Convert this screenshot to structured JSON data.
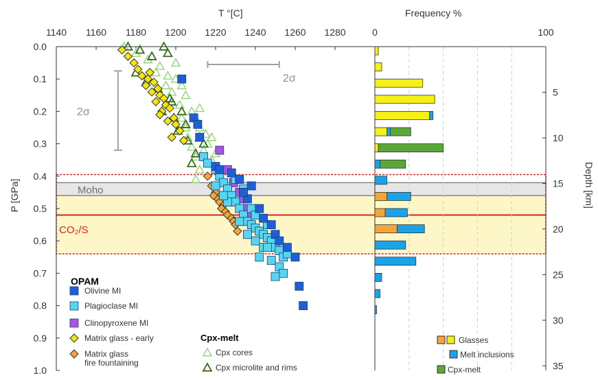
{
  "colors": {
    "olivine": "#1f5fd6",
    "plagioclase": "#54d6ee",
    "clinopyroxene": "#a855e0",
    "matrix_early": "#f2e60a",
    "matrix_fire": "#f2a63a",
    "cpx_core": "#8fd06a",
    "cpx_rim": "#356b1f",
    "moho_band": "#e6e6e6",
    "co2_band": "#fdf6c6",
    "co2_line": "#e02020",
    "two_sigma": "#a0a0a0",
    "freq_glass": "#f5ef1a",
    "freq_glass_fire": "#f2a63a",
    "freq_melt": "#1aa3e8",
    "freq_cpx": "#5aa83a"
  },
  "chart_data": [
    {
      "type": "scatter",
      "xlabel": "T  °[C]",
      "ylabel": "P [GPa]",
      "xlim": [
        1140,
        1300
      ],
      "ylim": [
        0.0,
        1.0
      ],
      "xticks": [
        "1140",
        "1160",
        "1180",
        "1200",
        "1220",
        "1240",
        "1260",
        "1280"
      ],
      "yticks": [
        "0.0",
        "0.1",
        "0.2",
        "0.3",
        "0.4",
        "0.5",
        "0.6",
        "0.7",
        "0.8",
        "0.9",
        "1.0"
      ],
      "legend_placement": "bottom-left",
      "legend_title_opam": "OPAM",
      "legend_title_cpx": "Cpx-melt",
      "legend": [
        {
          "key": "olivine",
          "label": "Olivine MI"
        },
        {
          "key": "plagioclase",
          "label": "Plagioclase MI"
        },
        {
          "key": "clinopyroxene",
          "label": "Clinopyroxene MI"
        },
        {
          "key": "matrix_early",
          "label": "Matrix glass - early"
        },
        {
          "key": "matrix_fire",
          "label": "Matrix glass\nfire fountaining"
        },
        {
          "key": "cpx_core",
          "label": "Cpx cores"
        },
        {
          "key": "cpx_rim",
          "label": "Cpx microlite and rims"
        }
      ],
      "annotations": {
        "moho": "Moho",
        "co2s": "CO₂/S",
        "two_sigma_t": "2σ",
        "two_sigma_p": "2σ"
      },
      "bands": {
        "moho": [
          0.42,
          0.46
        ],
        "co2s": [
          0.46,
          0.64
        ],
        "co2s_outline": [
          0.395,
          0.64
        ],
        "co2s_line": 0.52
      },
      "error_bars": {
        "temperature": {
          "p": 0.055,
          "x_range": [
            1216,
            1252
          ]
        },
        "pressure": {
          "t": 1171,
          "p_range": [
            0.075,
            0.32
          ]
        }
      },
      "series": [
        {
          "key": "cpx_core",
          "name": "Cpx cores",
          "marker": "triangle-open",
          "points": [
            [
              1174,
              0.0
            ],
            [
              1180,
              0.02
            ],
            [
              1186,
              0.04
            ],
            [
              1192,
              0.06
            ],
            [
              1196,
              0.09
            ],
            [
              1200,
              0.1
            ],
            [
              1203,
              0.12
            ],
            [
              1205,
              0.15
            ],
            [
              1202,
              0.18
            ],
            [
              1208,
              0.2
            ],
            [
              1210,
              0.22
            ],
            [
              1212,
              0.25
            ],
            [
              1215,
              0.27
            ],
            [
              1216,
              0.3
            ],
            [
              1214,
              0.32
            ],
            [
              1218,
              0.35
            ],
            [
              1212,
              0.38
            ],
            [
              1210,
              0.41
            ],
            [
              1220,
              0.33
            ],
            [
              1205,
              0.25
            ],
            [
              1198,
              0.14
            ],
            [
              1190,
              0.08
            ],
            [
              1200,
              0.05
            ],
            [
              1206,
              0.28
            ],
            [
              1210,
              0.34
            ],
            [
              1218,
              0.28
            ],
            [
              1212,
              0.19
            ],
            [
              1195,
              0.12
            ],
            [
              1203,
              0.22
            ],
            [
              1208,
              0.31
            ]
          ]
        },
        {
          "key": "cpx_rim",
          "name": "Cpx microlite and rims",
          "marker": "triangle-open-dark",
          "points": [
            [
              1176,
              0.0
            ],
            [
              1182,
              0.01
            ],
            [
              1188,
              0.03
            ],
            [
              1194,
              0.0
            ],
            [
              1180,
              0.08
            ],
            [
              1185,
              0.11
            ],
            [
              1191,
              0.13
            ],
            [
              1197,
              0.16
            ],
            [
              1193,
              0.2
            ],
            [
              1199,
              0.22
            ],
            [
              1201,
              0.26
            ],
            [
              1206,
              0.29
            ],
            [
              1210,
              0.33
            ],
            [
              1214,
              0.3
            ],
            [
              1208,
              0.36
            ],
            [
              1198,
              0.17
            ],
            [
              1203,
              0.2
            ],
            [
              1205,
              0.24
            ],
            [
              1212,
              0.28
            ],
            [
              1196,
              0.02
            ]
          ]
        },
        {
          "key": "matrix_early",
          "name": "Matrix glass - early",
          "marker": "diamond",
          "points": [
            [
              1173,
              0.01
            ],
            [
              1176,
              0.03
            ],
            [
              1179,
              0.05
            ],
            [
              1181,
              0.07
            ],
            [
              1183,
              0.09
            ],
            [
              1186,
              0.1
            ],
            [
              1189,
              0.11
            ],
            [
              1191,
              0.13
            ],
            [
              1188,
              0.14
            ],
            [
              1192,
              0.15
            ],
            [
              1194,
              0.16
            ],
            [
              1190,
              0.17
            ],
            [
              1195,
              0.18
            ],
            [
              1197,
              0.19
            ],
            [
              1193,
              0.2
            ],
            [
              1199,
              0.22
            ],
            [
              1196,
              0.23
            ],
            [
              1200,
              0.24
            ],
            [
              1202,
              0.26
            ],
            [
              1198,
              0.28
            ],
            [
              1204,
              0.29
            ],
            [
              1187,
              0.08
            ],
            [
              1185,
              0.12
            ],
            [
              1192,
              0.21
            ]
          ]
        },
        {
          "key": "matrix_fire",
          "name": "Matrix glass fire fountaining",
          "marker": "diamond",
          "points": [
            [
              1216,
              0.4
            ],
            [
              1218,
              0.43
            ],
            [
              1220,
              0.45
            ],
            [
              1221,
              0.47
            ],
            [
              1222,
              0.48
            ],
            [
              1224,
              0.49
            ],
            [
              1223,
              0.5
            ],
            [
              1225,
              0.51
            ],
            [
              1226,
              0.52
            ],
            [
              1228,
              0.53
            ],
            [
              1229,
              0.54
            ],
            [
              1230,
              0.55
            ],
            [
              1231,
              0.57
            ],
            [
              1219,
              0.46
            ]
          ]
        },
        {
          "key": "clinopyroxene",
          "name": "Clinopyroxene MI",
          "marker": "square",
          "points": [
            [
              1222,
              0.32
            ],
            [
              1226,
              0.38
            ],
            [
              1229,
              0.42
            ],
            [
              1232,
              0.45
            ],
            [
              1234,
              0.47
            ],
            [
              1236,
              0.5
            ],
            [
              1238,
              0.52
            ],
            [
              1230,
              0.48
            ]
          ]
        },
        {
          "key": "plagioclase",
          "name": "Plagioclase MI",
          "marker": "square",
          "points": [
            [
              1214,
              0.34
            ],
            [
              1216,
              0.36
            ],
            [
              1220,
              0.38
            ],
            [
              1222,
              0.4
            ],
            [
              1224,
              0.42
            ],
            [
              1226,
              0.44
            ],
            [
              1228,
              0.46
            ],
            [
              1230,
              0.48
            ],
            [
              1232,
              0.5
            ],
            [
              1234,
              0.52
            ],
            [
              1236,
              0.54
            ],
            [
              1238,
              0.55
            ],
            [
              1240,
              0.56
            ],
            [
              1242,
              0.57
            ],
            [
              1244,
              0.58
            ],
            [
              1246,
              0.59
            ],
            [
              1248,
              0.6
            ],
            [
              1250,
              0.62
            ],
            [
              1252,
              0.63
            ],
            [
              1254,
              0.65
            ],
            [
              1256,
              0.64
            ],
            [
              1244,
              0.62
            ],
            [
              1240,
              0.6
            ],
            [
              1236,
              0.58
            ],
            [
              1248,
              0.66
            ],
            [
              1252,
              0.68
            ],
            [
              1254,
              0.7
            ],
            [
              1250,
              0.71
            ],
            [
              1242,
              0.65
            ],
            [
              1246,
              0.55
            ],
            [
              1238,
              0.5
            ],
            [
              1226,
              0.48
            ],
            [
              1232,
              0.54
            ],
            [
              1240,
              0.52
            ],
            [
              1234,
              0.44
            ],
            [
              1230,
              0.41
            ],
            [
              1220,
              0.43
            ],
            [
              1224,
              0.46
            ],
            [
              1246,
              0.62
            ]
          ]
        },
        {
          "key": "olivine",
          "name": "Olivine MI",
          "marker": "square",
          "points": [
            [
              1203,
              0.1
            ],
            [
              1209,
              0.22
            ],
            [
              1211,
              0.24
            ],
            [
              1212,
              0.28
            ],
            [
              1220,
              0.37
            ],
            [
              1222,
              0.38
            ],
            [
              1228,
              0.39
            ],
            [
              1232,
              0.41
            ],
            [
              1238,
              0.43
            ],
            [
              1236,
              0.47
            ],
            [
              1242,
              0.5
            ],
            [
              1244,
              0.53
            ],
            [
              1248,
              0.55
            ],
            [
              1250,
              0.58
            ],
            [
              1252,
              0.6
            ],
            [
              1256,
              0.62
            ],
            [
              1260,
              0.65
            ],
            [
              1262,
              0.74
            ],
            [
              1264,
              0.8
            ],
            [
              1234,
              0.45
            ]
          ]
        }
      ]
    },
    {
      "type": "bar",
      "xlabel": "Frequency %",
      "ylabel": "Depth [km]",
      "xlim": [
        0,
        100
      ],
      "xticks": [
        "0",
        "100"
      ],
      "depth_ticks": [
        "5",
        "10",
        "15",
        "20",
        "25",
        "30",
        "35"
      ],
      "legend_placement": "bottom-right",
      "legend": [
        {
          "key": "glasses",
          "label": "Glasses"
        },
        {
          "key": "melt",
          "label": "Melt inclusions"
        },
        {
          "key": "cpx",
          "label": "Cpx-melt"
        }
      ],
      "bins_p": [
        0.0,
        0.025,
        0.05,
        0.075,
        0.1,
        0.125,
        0.15,
        0.175,
        0.2,
        0.225,
        0.25,
        0.275,
        0.3,
        0.325,
        0.35,
        0.375,
        0.4,
        0.425,
        0.45,
        0.475,
        0.5,
        0.525,
        0.55,
        0.575,
        0.6,
        0.625,
        0.65,
        0.675,
        0.7,
        0.725,
        0.75,
        0.775,
        0.8
      ],
      "bars": [
        {
          "p": 0.0,
          "glass": 2,
          "fire": 0,
          "melt": 0,
          "cpx": 0
        },
        {
          "p": 0.05,
          "glass": 4,
          "fire": 0,
          "melt": 0,
          "cpx": 0
        },
        {
          "p": 0.1,
          "glass": 28,
          "fire": 0,
          "melt": 0,
          "cpx": 0
        },
        {
          "p": 0.15,
          "glass": 35,
          "fire": 0,
          "melt": 0,
          "cpx": 0
        },
        {
          "p": 0.2,
          "glass": 32,
          "fire": 0,
          "melt": 2,
          "cpx": 0
        },
        {
          "p": 0.25,
          "glass": 7,
          "fire": 0,
          "melt": 2,
          "cpx": 12
        },
        {
          "p": 0.3,
          "glass": 2,
          "fire": 0,
          "melt": 0,
          "cpx": 38
        },
        {
          "p": 0.35,
          "glass": 0,
          "fire": 0,
          "melt": 3,
          "cpx": 15
        },
        {
          "p": 0.4,
          "glass": 0,
          "fire": 0,
          "melt": 7,
          "cpx": 0
        },
        {
          "p": 0.45,
          "glass": 0,
          "fire": 7,
          "melt": 14,
          "cpx": 0
        },
        {
          "p": 0.5,
          "glass": 0,
          "fire": 6,
          "melt": 13,
          "cpx": 0
        },
        {
          "p": 0.55,
          "glass": 0,
          "fire": 13,
          "melt": 16,
          "cpx": 0
        },
        {
          "p": 0.6,
          "glass": 0,
          "fire": 0,
          "melt": 18,
          "cpx": 0
        },
        {
          "p": 0.65,
          "glass": 0,
          "fire": 0,
          "melt": 24,
          "cpx": 0
        },
        {
          "p": 0.7,
          "glass": 0,
          "fire": 0,
          "melt": 4,
          "cpx": 0
        },
        {
          "p": 0.75,
          "glass": 0,
          "fire": 0,
          "melt": 3,
          "cpx": 0
        },
        {
          "p": 0.8,
          "glass": 0,
          "fire": 0,
          "melt": 1,
          "cpx": 0
        }
      ]
    }
  ]
}
